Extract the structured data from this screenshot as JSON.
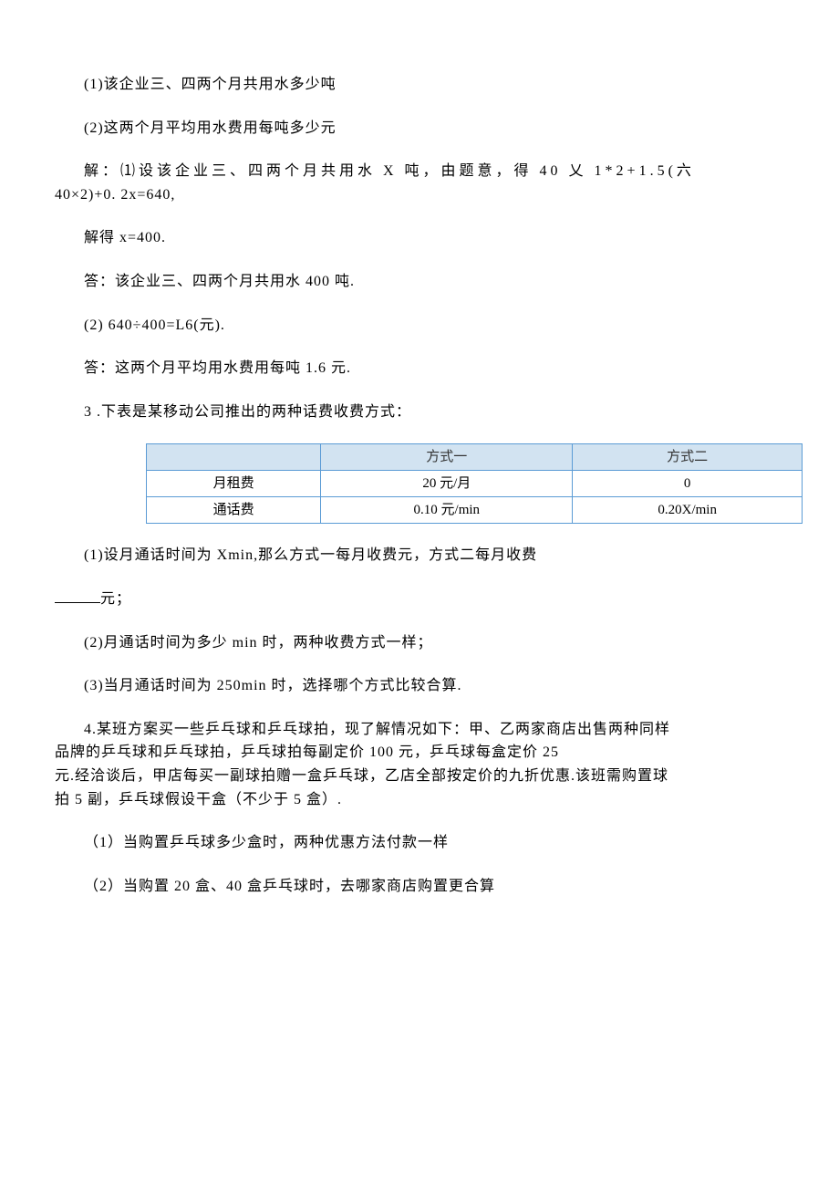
{
  "p1": "(1)该企业三、四两个月共用水多少吨",
  "p2": "(2)这两个月平均用水费用每吨多少元",
  "p3_line1": "解：⑴设该企业三、四两个月共用水 X 吨，由题意，得 40 乂 1*2+1.5(六",
  "p3_line2": "40×2)+0. 2x=640,",
  "p4": "解得 x=400.",
  "p5": "答：该企业三、四两个月共用水 400 吨.",
  "p6": "(2) 640÷400=L6(元).",
  "p7": "答：这两个月平均用水费用每吨 1.6 元.",
  "p8": "3 .下表是某移动公司推出的两种话费收费方式：",
  "table": {
    "header": [
      "",
      "方式一",
      "方式二"
    ],
    "rows": [
      [
        "月租费",
        "20 元/月",
        "0"
      ],
      [
        "通话费",
        "0.10 元/min",
        "0.20X/min"
      ]
    ],
    "header_bg": "#d2e3f1",
    "border_color": "#5b9bd5",
    "col_widths": [
      "33%",
      "33%",
      "34%"
    ]
  },
  "p9": "(1)设月通话时间为 Xmin,那么方式一每月收费元，方式二每月收费",
  "p10_suffix": "元；",
  "p11": "(2)月通话时间为多少 min 时，两种收费方式一样；",
  "p12": "(3)当月通话时间为 250min 时，选择哪个方式比较合算.",
  "p13_line1": "4.某班方案买一些乒乓球和乒乓球拍，现了解情况如下：甲、乙两家商店出售两种同样",
  "p13_line2": "品牌的乒乓球和乒乓球拍，乒乓球拍每副定价 100 元，乒乓球每盒定价 25",
  "p13_line3": "元.经洽谈后，甲店每买一副球拍赠一盒乒乓球，乙店全部按定价的九折优惠.该班需购置球",
  "p13_line4": "拍 5 副，乒乓球假设干盒（不少于 5 盒）.",
  "p14": "（1）当购置乒乓球多少盒时，两种优惠方法付款一样",
  "p15": "（2）当购置 20 盒、40 盒乒乓球时，去哪家商店购置更合算"
}
